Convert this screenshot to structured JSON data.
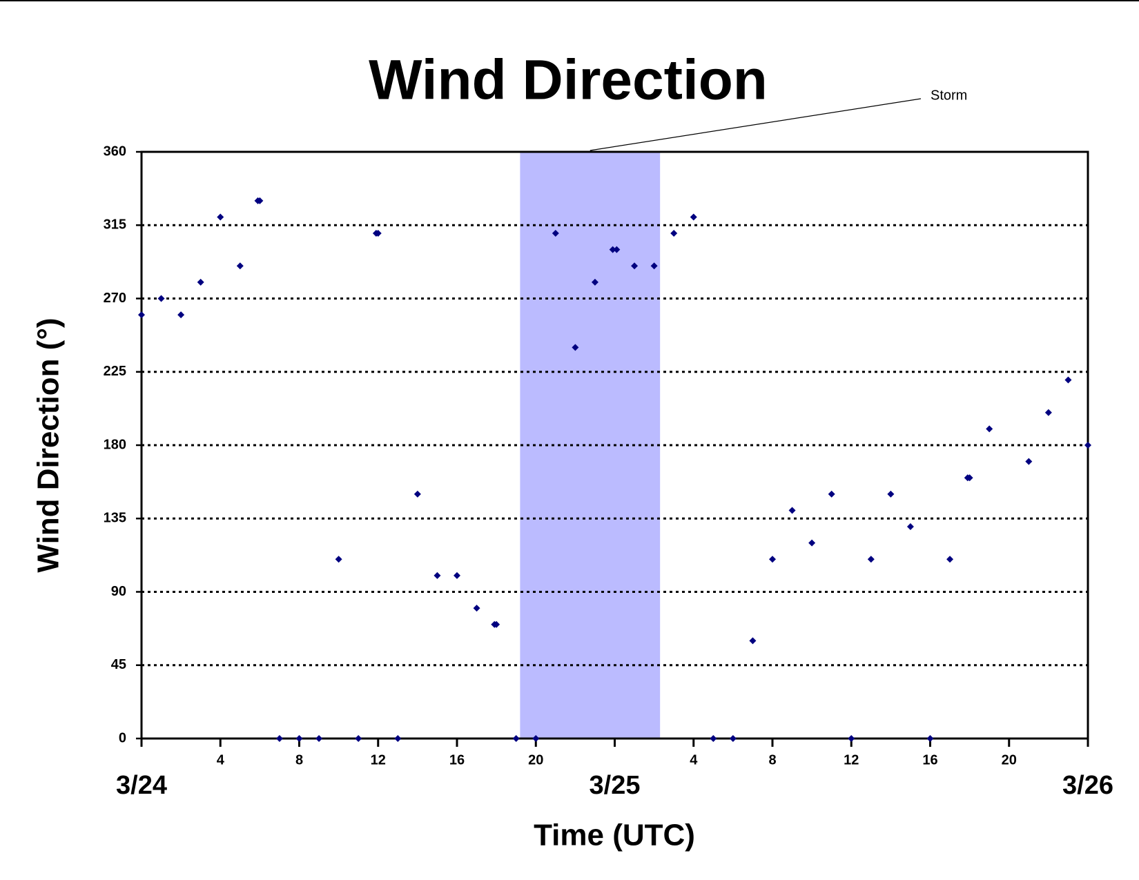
{
  "chart_data": {
    "type": "scatter",
    "title": "Wind Direction",
    "xlabel": "Time (UTC)",
    "ylabel": "Wind Direction (°)",
    "annotation": {
      "text": "Storm",
      "x_start": 19.2,
      "x_end": 26.3,
      "color": "#bbbbff"
    },
    "color": "#000080",
    "x": [
      0,
      1,
      2,
      3,
      4,
      5,
      5.9,
      6.0,
      7,
      8,
      9,
      10,
      11,
      11.9,
      12.0,
      13,
      14,
      15,
      16,
      17,
      17.9,
      18.0,
      19,
      20,
      21,
      22,
      23,
      23.9,
      24.1,
      25,
      26,
      27,
      28,
      29,
      30,
      31,
      32,
      33,
      34,
      35,
      36,
      37,
      38,
      39,
      40,
      41,
      41.9,
      42.0,
      43,
      45,
      46,
      47,
      48
    ],
    "values": [
      260,
      270,
      260,
      280,
      320,
      290,
      330,
      330,
      0,
      0,
      0,
      110,
      0,
      310,
      310,
      0,
      150,
      100,
      100,
      80,
      70,
      70,
      0,
      0,
      310,
      240,
      280,
      300,
      300,
      290,
      290,
      310,
      320,
      0,
      0,
      60,
      110,
      140,
      120,
      150,
      0,
      110,
      150,
      130,
      0,
      110,
      160,
      160,
      190,
      170,
      200,
      220,
      180
    ],
    "xlim": [
      0,
      48
    ],
    "xticks": [
      {
        "value": 0,
        "label": "3/24"
      },
      4,
      8,
      12,
      16,
      20,
      {
        "value": 24,
        "label": "3/25"
      },
      {
        "value": 28,
        "label": "4"
      },
      {
        "value": 32,
        "label": "8"
      },
      {
        "value": 36,
        "label": "12"
      },
      {
        "value": 40,
        "label": "16"
      },
      {
        "value": 44,
        "label": "20"
      },
      {
        "value": 48,
        "label": "3/26"
      }
    ],
    "ylim": [
      0,
      360
    ],
    "yticks": [
      0,
      45,
      90,
      135,
      180,
      225,
      270,
      315,
      360
    ],
    "grid": true
  }
}
